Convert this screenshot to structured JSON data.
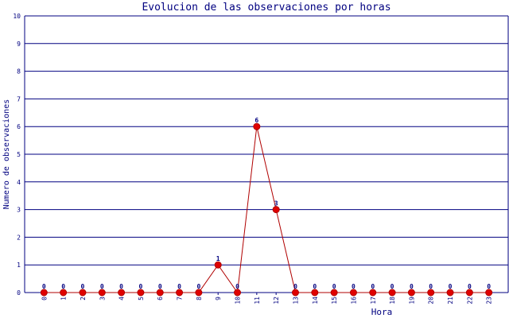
{
  "chart_data": {
    "type": "line",
    "title": "Evolucion de las observaciones por horas",
    "x_label": "Hora",
    "y_label": "Numero de observaciones",
    "categories": [
      "0",
      "1",
      "2",
      "3",
      "4",
      "5",
      "6",
      "7",
      "8",
      "9",
      "10",
      "11",
      "12",
      "13",
      "14",
      "15",
      "16",
      "17",
      "18",
      "19",
      "20",
      "21",
      "22",
      "23"
    ],
    "values": [
      0,
      0,
      0,
      0,
      0,
      0,
      0,
      0,
      0,
      1,
      0,
      6,
      3,
      0,
      0,
      0,
      0,
      0,
      0,
      0,
      0,
      0,
      0,
      0
    ],
    "color": "#b00000",
    "marker_color": "#e00000",
    "ylim": [
      0,
      10
    ],
    "yticks": [
      0,
      1,
      2,
      3,
      4,
      5,
      6,
      7,
      8,
      9,
      10
    ],
    "grid": true
  }
}
